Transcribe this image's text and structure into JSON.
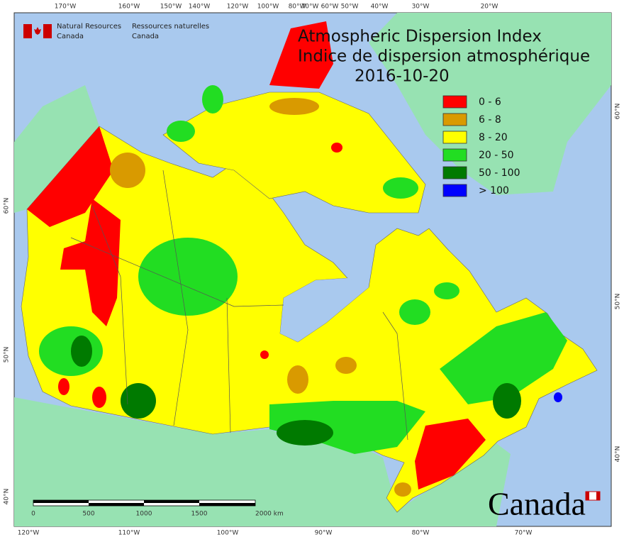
{
  "agency": {
    "en_line1": "Natural Resources",
    "en_line2": "Canada",
    "fr_line1": "Ressources naturelles",
    "fr_line2": "Canada"
  },
  "title": {
    "en": "Atmospheric Dispersion Index",
    "fr": "Indice de dispersion atmosphérique",
    "date": "2016-10-20"
  },
  "legend": [
    {
      "label": "0 - 6",
      "color": "#ff0000"
    },
    {
      "label": "6 - 8",
      "color": "#d99a00"
    },
    {
      "label": "8 - 20",
      "color": "#ffff00"
    },
    {
      "label": "20 - 50",
      "color": "#22dd22"
    },
    {
      "label": "50 - 100",
      "color": "#007a00"
    },
    {
      "label": "> 100",
      "color": "#0000ff"
    }
  ],
  "graticule": {
    "top": [
      "170°W",
      "160°W",
      "150°W",
      "140°W",
      "120°W",
      "100°W",
      "80°W",
      "70°W",
      "60°W",
      "50°W",
      "40°W",
      "30°W",
      "20°W"
    ],
    "bottom": [
      "120°W",
      "110°W",
      "100°W",
      "90°W",
      "80°W",
      "70°W"
    ],
    "left": [
      "60°N",
      "50°N",
      "40°N"
    ],
    "right": [
      "60°N",
      "50°N",
      "40°N"
    ]
  },
  "scale": {
    "labels": [
      "0",
      "500",
      "1000",
      "1500",
      "2000 km"
    ]
  },
  "wordmark": "Canada"
}
